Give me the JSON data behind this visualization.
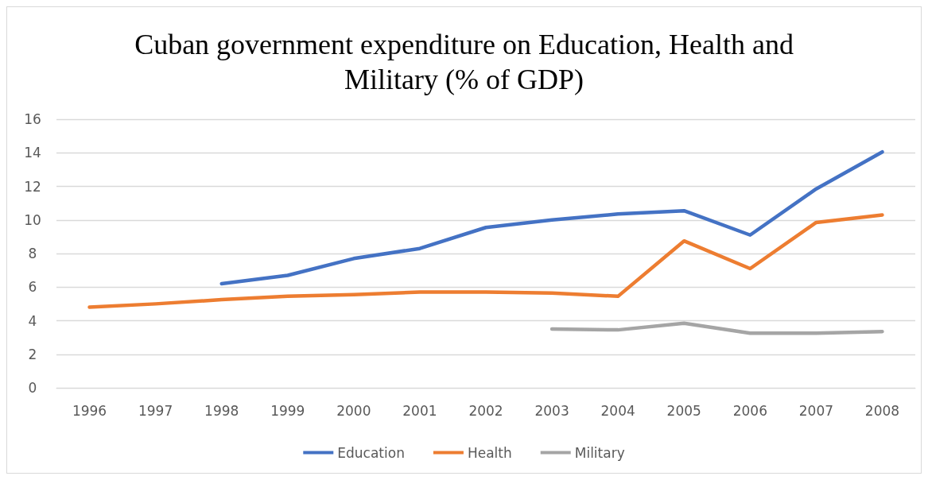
{
  "chart_data": {
    "type": "line",
    "title": "Cuban government expenditure on Education, Health and\nMilitary (% of GDP)",
    "categories": [
      "1996",
      "1997",
      "1998",
      "1999",
      "2000",
      "2001",
      "2002",
      "2003",
      "2004",
      "2005",
      "2006",
      "2007",
      "2008"
    ],
    "series": [
      {
        "name": "Education",
        "color": "#4472c4",
        "values": [
          null,
          null,
          6.2,
          6.7,
          7.7,
          8.3,
          9.55,
          10.0,
          10.35,
          10.55,
          9.1,
          11.85,
          14.05
        ]
      },
      {
        "name": "Health",
        "color": "#ed7d31",
        "values": [
          4.8,
          5.0,
          5.25,
          5.45,
          5.55,
          5.7,
          5.7,
          5.65,
          5.45,
          8.75,
          7.1,
          9.85,
          10.3
        ]
      },
      {
        "name": "Military",
        "color": "#a5a5a5",
        "values": [
          null,
          null,
          null,
          null,
          null,
          null,
          null,
          3.5,
          3.45,
          3.85,
          3.25,
          3.25,
          3.35
        ]
      }
    ],
    "ylim": [
      0,
      16
    ],
    "yticks": [
      0,
      2,
      4,
      6,
      8,
      10,
      12,
      14,
      16
    ],
    "grid": "y",
    "legend": "bottom",
    "marker": "none",
    "line_style": "solid"
  }
}
